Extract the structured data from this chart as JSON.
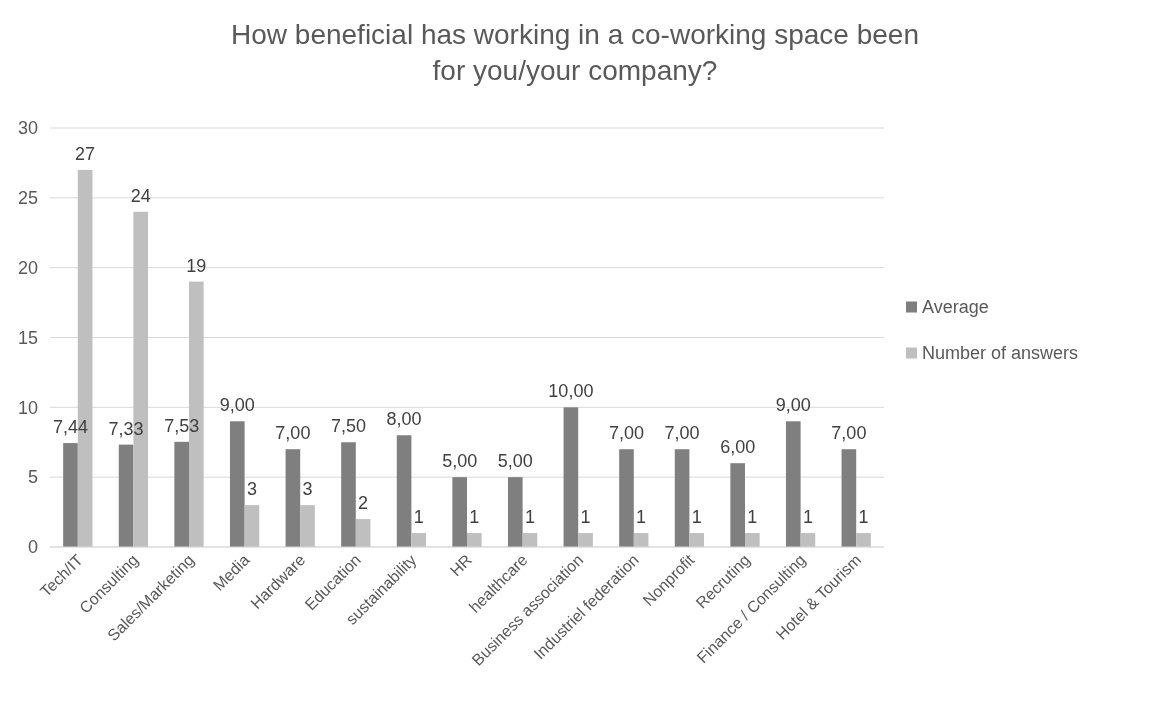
{
  "chart_data": {
    "type": "bar",
    "title": "How beneficial has working in a co-working space been for you/your company?",
    "categories": [
      "Tech/IT",
      "Consulting",
      "Sales/Marketing",
      "Media",
      "Hardware",
      "Education",
      "sustainability",
      "HR",
      "healthcare",
      "Business association",
      "Industriel federation",
      "Nonprofit",
      "Recruting",
      "Finance / Consulting",
      "Hotel & Tourism"
    ],
    "series": [
      {
        "name": "Average",
        "color": "#7f7f7f",
        "values": [
          7.44,
          7.33,
          7.53,
          9,
          7,
          7.5,
          8,
          5,
          5,
          10,
          7,
          7,
          6,
          9,
          7
        ],
        "value_labels": [
          "7,44",
          "7,33",
          "7,53",
          "9,00",
          "7,00",
          "7,50",
          "8,00",
          "5,00",
          "5,00",
          "10,00",
          "7,00",
          "7,00",
          "6,00",
          "9,00",
          "7,00"
        ]
      },
      {
        "name": "Number of answers",
        "color": "#bfbfbf",
        "values": [
          27,
          24,
          19,
          3,
          3,
          2,
          1,
          1,
          1,
          1,
          1,
          1,
          1,
          1,
          1
        ],
        "value_labels": [
          "27",
          "24",
          "19",
          "3",
          "3",
          "2",
          "1",
          "1",
          "1",
          "1",
          "1",
          "1",
          "1",
          "1",
          "1"
        ]
      }
    ],
    "ylim": [
      0,
      30
    ],
    "yticks": [
      0,
      5,
      10,
      15,
      20,
      25,
      30
    ],
    "grid": "y",
    "legend": "right"
  }
}
